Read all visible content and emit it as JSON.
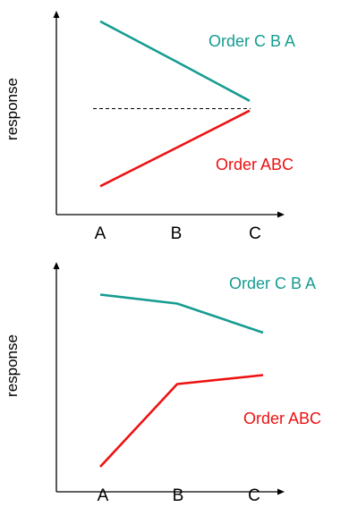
{
  "colors": {
    "order_cba": "#169c90",
    "order_abc": "#ee1111",
    "axis": "#000000",
    "reference": "#000000"
  },
  "chart_data": [
    {
      "type": "line",
      "title": "",
      "xlabel": "",
      "ylabel": "response",
      "categories": [
        "A",
        "B",
        "C"
      ],
      "ylim": [
        0,
        10
      ],
      "series": [
        {
          "name": "Order C B A",
          "values": [
            9.5,
            7.4,
            5.4
          ],
          "color": "#169c90"
        },
        {
          "name": "Order ABC",
          "values": [
            1.0,
            3.0,
            4.9
          ],
          "color": "#ee1111"
        }
      ],
      "reference_line": {
        "style": "dashed",
        "value": 5.0
      },
      "grid": false
    },
    {
      "type": "line",
      "title": "",
      "xlabel": "",
      "ylabel": "response",
      "categories": [
        "A",
        "B",
        "C"
      ],
      "ylim": [
        0,
        10
      ],
      "series": [
        {
          "name": "Order C B A",
          "values": [
            8.7,
            8.3,
            7.0
          ],
          "color": "#169c90"
        },
        {
          "name": "Order ABC",
          "values": [
            1.0,
            4.7,
            5.1
          ],
          "color": "#ee1111"
        }
      ],
      "grid": false
    }
  ]
}
